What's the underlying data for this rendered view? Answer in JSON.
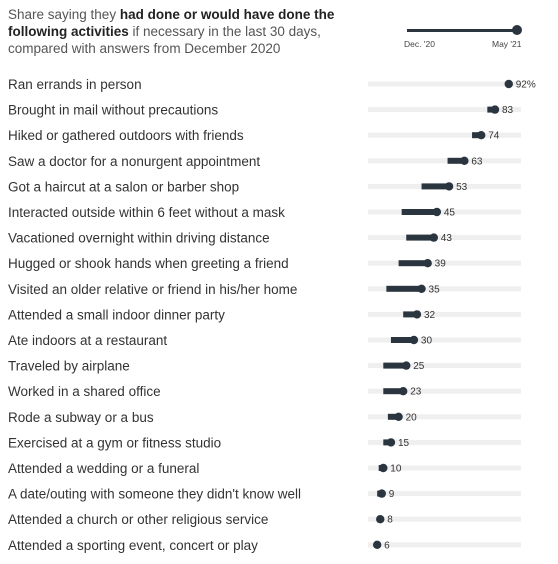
{
  "header": {
    "prefix": "Share saying they ",
    "bold1": "had done or would have done the",
    "bold2": "following activities",
    "suffix": " if necessary in the last 30 days, compared with answers from December 2020"
  },
  "legend": {
    "start_label": "Dec. '20",
    "end_label": "May '21"
  },
  "colors": {
    "bar": "#2a3540",
    "track": "#efefef",
    "text": "#333333"
  },
  "chart_data": {
    "type": "dumbbell",
    "xlim": [
      0,
      100
    ],
    "series": [
      {
        "name": "Dec. '20",
        "values": [
          92,
          78,
          68,
          52,
          35,
          22,
          25,
          20,
          12,
          23,
          15,
          10,
          10,
          13,
          10,
          7,
          6,
          6,
          6
        ]
      },
      {
        "name": "May '21",
        "values": [
          92,
          83,
          74,
          63,
          53,
          45,
          43,
          39,
          35,
          32,
          30,
          25,
          23,
          20,
          15,
          10,
          9,
          8,
          6
        ]
      }
    ],
    "categories": [
      "Ran errands in person",
      "Brought in mail without precautions",
      "Hiked or gathered outdoors with friends",
      "Saw a doctor for a nonurgent appointment",
      "Got a haircut at a salon or barber shop",
      "Interacted outside within 6 feet without a mask",
      "Vacationed overnight within driving distance",
      "Hugged or shook hands when greeting a friend",
      "Visited an older relative or friend in his/her home",
      "Attended a small indoor dinner party",
      "Ate indoors at a restaurant",
      "Traveled by airplane",
      "Worked in a shared office",
      "Rode a subway or a bus",
      "Exercised at a gym or fitness studio",
      "Attended a wedding or a funeral",
      "A date/outing with someone they didn't know well",
      "Attended a church or other religious service",
      "Attended a sporting event, concert or play"
    ],
    "value_labels": [
      "92%",
      "83",
      "74",
      "63",
      "53",
      "45",
      "43",
      "39",
      "35",
      "32",
      "30",
      "25",
      "23",
      "20",
      "15",
      "10",
      "9",
      "8",
      "6"
    ]
  }
}
